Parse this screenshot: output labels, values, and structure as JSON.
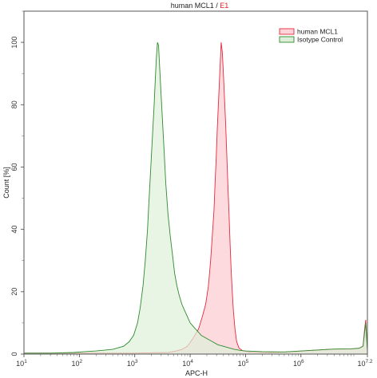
{
  "chart_data": {
    "type": "area",
    "title": {
      "part1": "human MCL1",
      "separator": " / ",
      "part2": "E1",
      "part2_color": "#e02020"
    },
    "xlabel": "APC-H",
    "ylabel": "Count [%]",
    "xscale": "log",
    "xlim": [
      1,
      7.2
    ],
    "ylim": [
      0,
      110
    ],
    "x_ticks": [
      {
        "base": "10",
        "exp": "1",
        "value": 1
      },
      {
        "base": "10",
        "exp": "2",
        "value": 2
      },
      {
        "base": "10",
        "exp": "3",
        "value": 3
      },
      {
        "base": "10",
        "exp": "4",
        "value": 4
      },
      {
        "base": "10",
        "exp": "5",
        "value": 5
      },
      {
        "base": "10",
        "exp": "6",
        "value": 6
      },
      {
        "base": "10",
        "exp": "7.2",
        "value": 7.2
      }
    ],
    "y_ticks": [
      0,
      20,
      40,
      60,
      80,
      100
    ],
    "legend_position": "top-right",
    "series": [
      {
        "name": "human MCL1",
        "stroke": "#e8283c",
        "fill": "#fbd3d8",
        "points": [
          [
            1.0,
            0.3
          ],
          [
            3.0,
            0.3
          ],
          [
            3.6,
            0.5
          ],
          [
            3.75,
            1.0
          ],
          [
            3.85,
            1.5
          ],
          [
            3.95,
            2.5
          ],
          [
            4.05,
            5
          ],
          [
            4.15,
            8
          ],
          [
            4.22,
            12
          ],
          [
            4.28,
            16
          ],
          [
            4.33,
            22
          ],
          [
            4.37,
            30
          ],
          [
            4.4,
            38
          ],
          [
            4.43,
            46
          ],
          [
            4.45,
            55
          ],
          [
            4.47,
            63
          ],
          [
            4.49,
            72
          ],
          [
            4.51,
            80
          ],
          [
            4.53,
            88
          ],
          [
            4.55,
            96
          ],
          [
            4.56,
            100
          ],
          [
            4.58,
            97
          ],
          [
            4.6,
            90
          ],
          [
            4.62,
            82
          ],
          [
            4.64,
            74
          ],
          [
            4.66,
            65
          ],
          [
            4.68,
            55
          ],
          [
            4.7,
            46
          ],
          [
            4.72,
            36
          ],
          [
            4.74,
            27
          ],
          [
            4.76,
            20
          ],
          [
            4.78,
            14
          ],
          [
            4.81,
            8
          ],
          [
            4.84,
            4
          ],
          [
            4.88,
            2
          ],
          [
            4.95,
            1.0
          ],
          [
            5.1,
            0.6
          ],
          [
            5.5,
            0.5
          ],
          [
            5.9,
            0.8
          ],
          [
            6.2,
            1.2
          ],
          [
            6.5,
            1.5
          ],
          [
            6.9,
            1.6
          ],
          [
            7.05,
            1.8
          ],
          [
            7.12,
            2.5
          ],
          [
            7.15,
            8
          ],
          [
            7.17,
            11
          ],
          [
            7.19,
            4
          ],
          [
            7.2,
            1
          ]
        ]
      },
      {
        "name": "Isotype Control",
        "stroke": "#2e8b2e",
        "fill": "#deefd9",
        "points": [
          [
            1.0,
            0.3
          ],
          [
            1.5,
            0.3
          ],
          [
            1.9,
            0.5
          ],
          [
            2.1,
            0.8
          ],
          [
            2.3,
            1.0
          ],
          [
            2.6,
            1.5
          ],
          [
            2.8,
            2.5
          ],
          [
            2.9,
            4
          ],
          [
            2.98,
            6
          ],
          [
            3.05,
            10
          ],
          [
            3.1,
            15
          ],
          [
            3.15,
            22
          ],
          [
            3.19,
            30
          ],
          [
            3.23,
            40
          ],
          [
            3.26,
            50
          ],
          [
            3.29,
            60
          ],
          [
            3.32,
            70
          ],
          [
            3.35,
            80
          ],
          [
            3.37,
            88
          ],
          [
            3.39,
            95
          ],
          [
            3.41,
            100
          ],
          [
            3.43,
            99
          ],
          [
            3.45,
            92
          ],
          [
            3.47,
            85
          ],
          [
            3.5,
            75
          ],
          [
            3.53,
            65
          ],
          [
            3.56,
            55
          ],
          [
            3.6,
            45
          ],
          [
            3.64,
            38
          ],
          [
            3.68,
            32
          ],
          [
            3.72,
            26
          ],
          [
            3.76,
            22
          ],
          [
            3.8,
            19
          ],
          [
            3.85,
            16
          ],
          [
            3.9,
            14
          ],
          [
            3.95,
            12
          ],
          [
            4.0,
            10
          ],
          [
            4.05,
            9
          ],
          [
            4.1,
            8
          ],
          [
            4.15,
            7
          ],
          [
            4.2,
            6
          ],
          [
            4.25,
            5.5
          ],
          [
            4.3,
            5
          ],
          [
            4.4,
            4
          ],
          [
            4.5,
            3
          ],
          [
            4.6,
            2.5
          ],
          [
            4.7,
            2
          ],
          [
            4.8,
            1.5
          ],
          [
            4.9,
            1.2
          ],
          [
            5.0,
            1.0
          ],
          [
            5.3,
            0.8
          ],
          [
            5.7,
            0.7
          ],
          [
            6.0,
            1.0
          ],
          [
            6.3,
            1.3
          ],
          [
            6.6,
            1.6
          ],
          [
            6.9,
            1.7
          ],
          [
            7.05,
            1.9
          ],
          [
            7.12,
            2.5
          ],
          [
            7.15,
            7
          ],
          [
            7.17,
            10
          ],
          [
            7.19,
            4
          ],
          [
            7.2,
            1
          ]
        ]
      }
    ]
  }
}
